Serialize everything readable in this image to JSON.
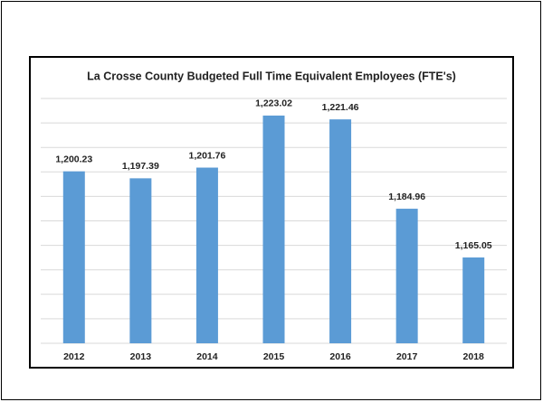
{
  "chart_data": {
    "type": "bar",
    "title": "La Crosse County Budgeted Full Time Equivalent Employees (FTE's)",
    "categories": [
      "2012",
      "2013",
      "2014",
      "2015",
      "2016",
      "2017",
      "2018"
    ],
    "values": [
      1200.23,
      1197.39,
      1201.76,
      1223.02,
      1221.46,
      1184.96,
      1165.05
    ],
    "value_labels": [
      "1,200.23",
      "1,197.39",
      "1,201.76",
      "1,223.02",
      "1,221.46",
      "1,184.96",
      "1,165.05"
    ],
    "color": "#5b9bd5",
    "ylim": [
      1130,
      1230
    ],
    "yticks": [
      1130,
      1140,
      1150,
      1160,
      1170,
      1180,
      1190,
      1200,
      1210,
      1220,
      1230
    ],
    "grid": true
  }
}
